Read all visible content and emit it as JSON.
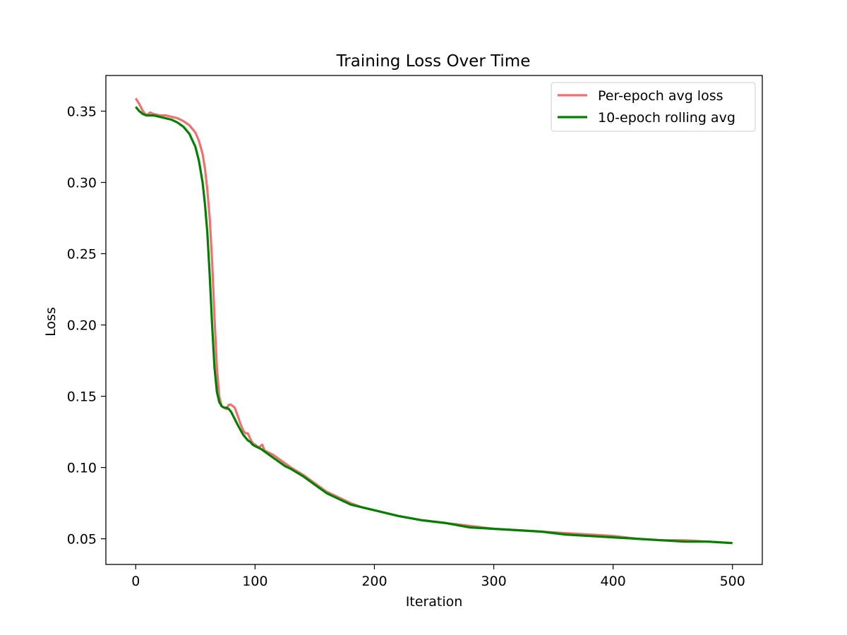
{
  "chart_data": {
    "type": "line",
    "title": "Training Loss Over Time",
    "xlabel": "Iteration",
    "ylabel": "Loss",
    "xlim": [
      -25,
      525
    ],
    "ylim": [
      0.032,
      0.375
    ],
    "xticks": [
      0,
      100,
      200,
      300,
      400,
      500
    ],
    "yticks": [
      0.05,
      0.1,
      0.15,
      0.2,
      0.25,
      0.3,
      0.35
    ],
    "ytick_labels": [
      "0.05",
      "0.10",
      "0.15",
      "0.20",
      "0.25",
      "0.30",
      "0.35"
    ],
    "xtick_labels": [
      "0",
      "100",
      "200",
      "300",
      "400",
      "500"
    ],
    "grid": false,
    "legend_position": "top-right",
    "series": [
      {
        "name": "Per-epoch avg loss",
        "color": "#f07070",
        "x": [
          0,
          3,
          6,
          9,
          12,
          15,
          20,
          25,
          30,
          35,
          40,
          45,
          50,
          53,
          56,
          58,
          60,
          62,
          64,
          66,
          68,
          70,
          72,
          74,
          76,
          78,
          80,
          83,
          86,
          88,
          90,
          92,
          94,
          96,
          98,
          100,
          103,
          106,
          108,
          110,
          115,
          120,
          125,
          130,
          140,
          150,
          160,
          170,
          180,
          190,
          200,
          220,
          240,
          260,
          280,
          300,
          320,
          340,
          360,
          380,
          400,
          420,
          440,
          460,
          480,
          500
        ],
        "y": [
          0.359,
          0.355,
          0.35,
          0.347,
          0.349,
          0.348,
          0.347,
          0.347,
          0.346,
          0.345,
          0.343,
          0.34,
          0.335,
          0.329,
          0.32,
          0.31,
          0.295,
          0.275,
          0.245,
          0.205,
          0.17,
          0.15,
          0.143,
          0.142,
          0.141,
          0.144,
          0.144,
          0.142,
          0.135,
          0.13,
          0.126,
          0.124,
          0.124,
          0.12,
          0.117,
          0.116,
          0.114,
          0.116,
          0.112,
          0.111,
          0.109,
          0.106,
          0.103,
          0.1,
          0.095,
          0.089,
          0.083,
          0.079,
          0.075,
          0.072,
          0.07,
          0.066,
          0.063,
          0.061,
          0.059,
          0.057,
          0.056,
          0.055,
          0.054,
          0.053,
          0.052,
          0.05,
          0.049,
          0.049,
          0.048,
          0.047
        ]
      },
      {
        "name": "10-epoch rolling avg",
        "color": "#008000",
        "x": [
          0,
          3,
          6,
          9,
          12,
          15,
          20,
          25,
          30,
          35,
          40,
          45,
          50,
          53,
          56,
          58,
          60,
          62,
          64,
          66,
          68,
          70,
          72,
          74,
          76,
          78,
          80,
          83,
          86,
          88,
          90,
          92,
          94,
          96,
          98,
          100,
          105,
          110,
          115,
          120,
          125,
          130,
          140,
          150,
          160,
          170,
          180,
          190,
          200,
          220,
          240,
          260,
          280,
          300,
          320,
          340,
          360,
          380,
          400,
          420,
          440,
          460,
          480,
          500
        ],
        "y": [
          0.353,
          0.35,
          0.348,
          0.347,
          0.347,
          0.347,
          0.346,
          0.345,
          0.344,
          0.342,
          0.339,
          0.334,
          0.325,
          0.315,
          0.3,
          0.285,
          0.265,
          0.235,
          0.2,
          0.17,
          0.153,
          0.146,
          0.143,
          0.142,
          0.142,
          0.141,
          0.139,
          0.134,
          0.129,
          0.126,
          0.123,
          0.121,
          0.119,
          0.118,
          0.116,
          0.115,
          0.113,
          0.11,
          0.107,
          0.104,
          0.101,
          0.099,
          0.094,
          0.088,
          0.082,
          0.078,
          0.074,
          0.072,
          0.07,
          0.066,
          0.063,
          0.061,
          0.058,
          0.057,
          0.056,
          0.055,
          0.053,
          0.052,
          0.051,
          0.05,
          0.049,
          0.048,
          0.048,
          0.047
        ]
      }
    ]
  }
}
